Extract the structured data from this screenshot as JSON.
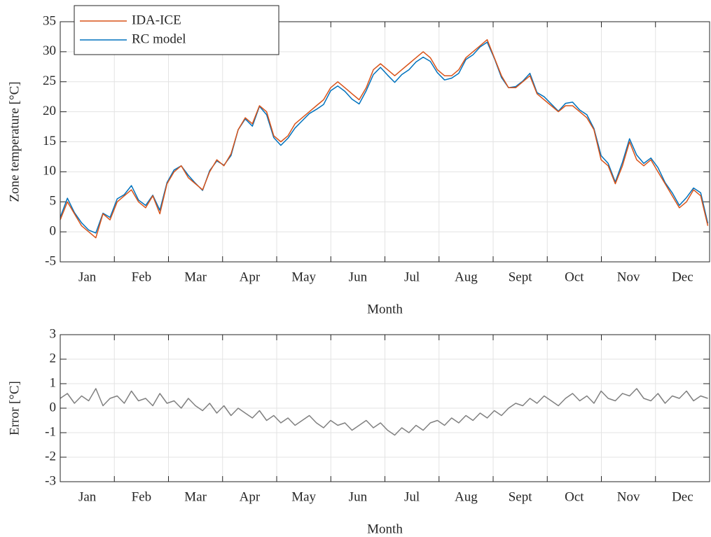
{
  "chart_data": [
    {
      "type": "line",
      "ylabel": "Zone temperature [°C]",
      "xlabel": "Month",
      "categories": [
        "Jan",
        "Feb",
        "Mar",
        "Apr",
        "May",
        "Jun",
        "Jul",
        "Aug",
        "Sept",
        "Oct",
        "Nov",
        "Dec"
      ],
      "x": [
        0,
        4,
        8,
        12,
        16,
        20,
        24,
        28,
        32,
        36,
        40,
        44,
        48,
        52,
        56,
        60,
        64,
        68,
        72,
        76,
        80,
        84,
        88,
        92,
        96,
        100,
        104,
        108,
        112,
        116,
        120,
        124,
        128,
        132,
        136,
        140,
        144,
        148,
        152,
        156,
        160,
        164,
        168,
        172,
        176,
        180,
        184,
        188,
        192,
        196,
        200,
        204,
        208,
        212,
        216,
        220,
        224,
        228,
        232,
        236,
        240,
        244,
        248,
        252,
        256,
        260,
        264,
        268,
        272,
        276,
        280,
        284,
        288,
        292,
        296,
        300,
        304,
        308,
        312,
        316,
        320,
        324,
        328,
        332,
        336,
        340,
        344,
        348,
        352,
        356,
        360,
        364
      ],
      "xlim": [
        0,
        365
      ],
      "ylim": [
        -5,
        35
      ],
      "yticks": [
        -5,
        0,
        5,
        10,
        15,
        20,
        25,
        30,
        35
      ],
      "grid": true,
      "legend": "upper left",
      "series": [
        {
          "name": "IDA-ICE",
          "color": "#d95319",
          "values": [
            2,
            5,
            3,
            1,
            0,
            -1,
            3,
            2,
            5,
            6,
            7,
            5,
            4,
            6,
            3,
            8,
            10,
            11,
            9,
            8,
            7,
            10,
            12,
            11,
            13,
            17,
            19,
            18,
            21,
            20,
            16,
            15,
            16,
            18,
            19,
            20,
            21,
            22,
            24,
            25,
            24,
            23,
            22,
            24,
            27,
            28,
            27,
            26,
            27,
            28,
            29,
            30,
            29,
            27,
            26,
            26,
            27,
            29,
            30,
            31,
            32,
            29,
            26,
            24,
            24,
            25,
            26,
            23,
            22,
            21,
            20,
            21,
            21,
            20,
            19,
            17,
            12,
            11,
            8,
            11,
            15,
            12,
            11,
            12,
            10,
            8,
            6,
            4,
            5,
            7,
            6,
            1
          ]
        },
        {
          "name": "RC model",
          "color": "#0072bd",
          "values": [
            2.4,
            5.6,
            3.2,
            1.5,
            0.3,
            -0.2,
            3.1,
            2.4,
            5.5,
            6.2,
            7.7,
            5.3,
            4.4,
            6.1,
            3.6,
            8.2,
            10.3,
            11.0,
            9.4,
            8.1,
            6.9,
            10.2,
            11.8,
            11.1,
            12.7,
            17.0,
            18.8,
            17.6,
            20.9,
            19.5,
            15.7,
            14.4,
            15.6,
            17.3,
            18.5,
            19.7,
            20.4,
            21.2,
            23.5,
            24.3,
            23.4,
            22.1,
            21.3,
            23.5,
            26.2,
            27.4,
            26.1,
            24.9,
            26.2,
            27.0,
            28.3,
            29.1,
            28.4,
            26.5,
            25.3,
            25.6,
            26.4,
            28.7,
            29.5,
            30.8,
            31.6,
            28.9,
            25.7,
            24.0,
            24.2,
            25.1,
            26.4,
            23.2,
            22.5,
            21.3,
            20.1,
            21.4,
            21.6,
            20.3,
            19.5,
            17.2,
            12.7,
            11.4,
            8.3,
            11.6,
            15.5,
            12.8,
            11.4,
            12.3,
            10.7,
            8.2,
            6.5,
            4.4,
            5.7,
            7.3,
            6.5,
            1.4
          ]
        }
      ]
    },
    {
      "type": "line",
      "ylabel": "Error [°C]",
      "xlabel": "Month",
      "categories": [
        "Jan",
        "Feb",
        "Mar",
        "Apr",
        "May",
        "Jun",
        "Jul",
        "Aug",
        "Sept",
        "Oct",
        "Nov",
        "Dec"
      ],
      "x": [
        0,
        4,
        8,
        12,
        16,
        20,
        24,
        28,
        32,
        36,
        40,
        44,
        48,
        52,
        56,
        60,
        64,
        68,
        72,
        76,
        80,
        84,
        88,
        92,
        96,
        100,
        104,
        108,
        112,
        116,
        120,
        124,
        128,
        132,
        136,
        140,
        144,
        148,
        152,
        156,
        160,
        164,
        168,
        172,
        176,
        180,
        184,
        188,
        192,
        196,
        200,
        204,
        208,
        212,
        216,
        220,
        224,
        228,
        232,
        236,
        240,
        244,
        248,
        252,
        256,
        260,
        264,
        268,
        272,
        276,
        280,
        284,
        288,
        292,
        296,
        300,
        304,
        308,
        312,
        316,
        320,
        324,
        328,
        332,
        336,
        340,
        344,
        348,
        352,
        356,
        360,
        364
      ],
      "xlim": [
        0,
        365
      ],
      "ylim": [
        -3,
        3
      ],
      "yticks": [
        -3,
        -2,
        -1,
        0,
        1,
        2,
        3
      ],
      "grid": true,
      "series": [
        {
          "color": "#808080",
          "values": [
            0.4,
            0.6,
            0.2,
            0.5,
            0.3,
            0.8,
            0.1,
            0.4,
            0.5,
            0.2,
            0.7,
            0.3,
            0.4,
            0.1,
            0.6,
            0.2,
            0.3,
            0.0,
            0.4,
            0.1,
            -0.1,
            0.2,
            -0.2,
            0.1,
            -0.3,
            0.0,
            -0.2,
            -0.4,
            -0.1,
            -0.5,
            -0.3,
            -0.6,
            -0.4,
            -0.7,
            -0.5,
            -0.3,
            -0.6,
            -0.8,
            -0.5,
            -0.7,
            -0.6,
            -0.9,
            -0.7,
            -0.5,
            -0.8,
            -0.6,
            -0.9,
            -1.1,
            -0.8,
            -1.0,
            -0.7,
            -0.9,
            -0.6,
            -0.5,
            -0.7,
            -0.4,
            -0.6,
            -0.3,
            -0.5,
            -0.2,
            -0.4,
            -0.1,
            -0.3,
            0.0,
            0.2,
            0.1,
            0.4,
            0.2,
            0.5,
            0.3,
            0.1,
            0.4,
            0.6,
            0.3,
            0.5,
            0.2,
            0.7,
            0.4,
            0.3,
            0.6,
            0.5,
            0.8,
            0.4,
            0.3,
            0.6,
            0.2,
            0.5,
            0.4,
            0.7,
            0.3,
            0.5,
            0.4
          ]
        }
      ]
    }
  ]
}
